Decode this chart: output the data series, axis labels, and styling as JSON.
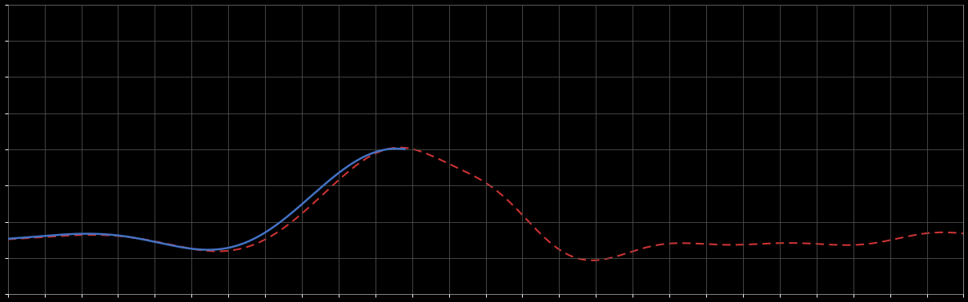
{
  "background_color": "#000000",
  "plot_bg_color": "#000000",
  "grid_color": "#505050",
  "blue_color": "#4472C4",
  "red_color": "#CC3333",
  "figsize": [
    12.09,
    3.78
  ],
  "dpi": 100,
  "xlim": [
    0,
    260
  ],
  "ylim": [
    0,
    8
  ],
  "x_grid_n": 26,
  "y_grid_n": 8,
  "blue_end_x": 108,
  "red_start_x": 0
}
